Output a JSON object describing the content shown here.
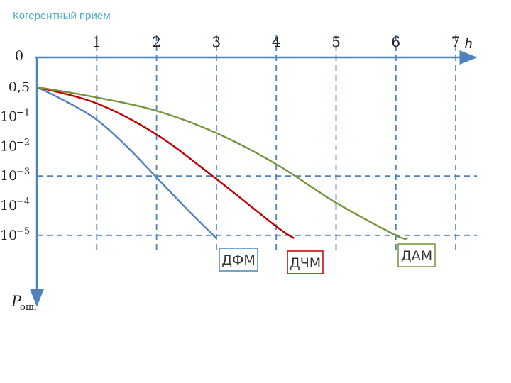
{
  "slide": {
    "title": "Когерентный приём"
  },
  "chart_data": {
    "type": "line",
    "xlabel": "h",
    "ylabel": "P",
    "ylabel_sub": "ош.",
    "x_ticks": [
      "1",
      "2",
      "3",
      "4",
      "5",
      "6",
      "7"
    ],
    "x_tick_values": [
      1,
      2,
      3,
      4,
      5,
      6,
      7
    ],
    "y_ticks": [
      {
        "label": "0",
        "base": "0",
        "exp": ""
      },
      {
        "label": "0,5",
        "base": "0,5",
        "exp": ""
      },
      {
        "label": "10^-1",
        "base": "10",
        "exp": "−1"
      },
      {
        "label": "10^-2",
        "base": "10",
        "exp": "−2"
      },
      {
        "label": "10^-3",
        "base": "10",
        "exp": "−3"
      },
      {
        "label": "10^-4",
        "base": "10",
        "exp": "−4"
      },
      {
        "label": "10^-5",
        "base": "10",
        "exp": "−5"
      }
    ],
    "y_levels": [
      0,
      1,
      2,
      3,
      4,
      5,
      6
    ],
    "grid": {
      "vertical": "dashed",
      "horizontal": [
        "10^-3",
        "10^-5"
      ]
    },
    "series": [
      {
        "name": "ДФМ",
        "color": "#4f81bd",
        "x": [
          0,
          0.5,
          1,
          1.5,
          2,
          2.5,
          3
        ],
        "y": [
          1,
          1.5,
          2.1,
          3.0,
          4.05,
          5.1,
          6.1
        ]
      },
      {
        "name": "ДЧМ",
        "color": "#c00000",
        "x": [
          0,
          1,
          2,
          3,
          4,
          4.3
        ],
        "y": [
          1,
          1.55,
          2.6,
          4.1,
          5.7,
          6.1
        ]
      },
      {
        "name": "ДАМ",
        "color": "#77933c",
        "x": [
          0,
          1,
          2,
          3,
          4,
          5,
          6,
          6.2
        ],
        "y": [
          1,
          1.35,
          1.8,
          2.55,
          3.6,
          4.9,
          6.0,
          6.1
        ]
      }
    ]
  }
}
